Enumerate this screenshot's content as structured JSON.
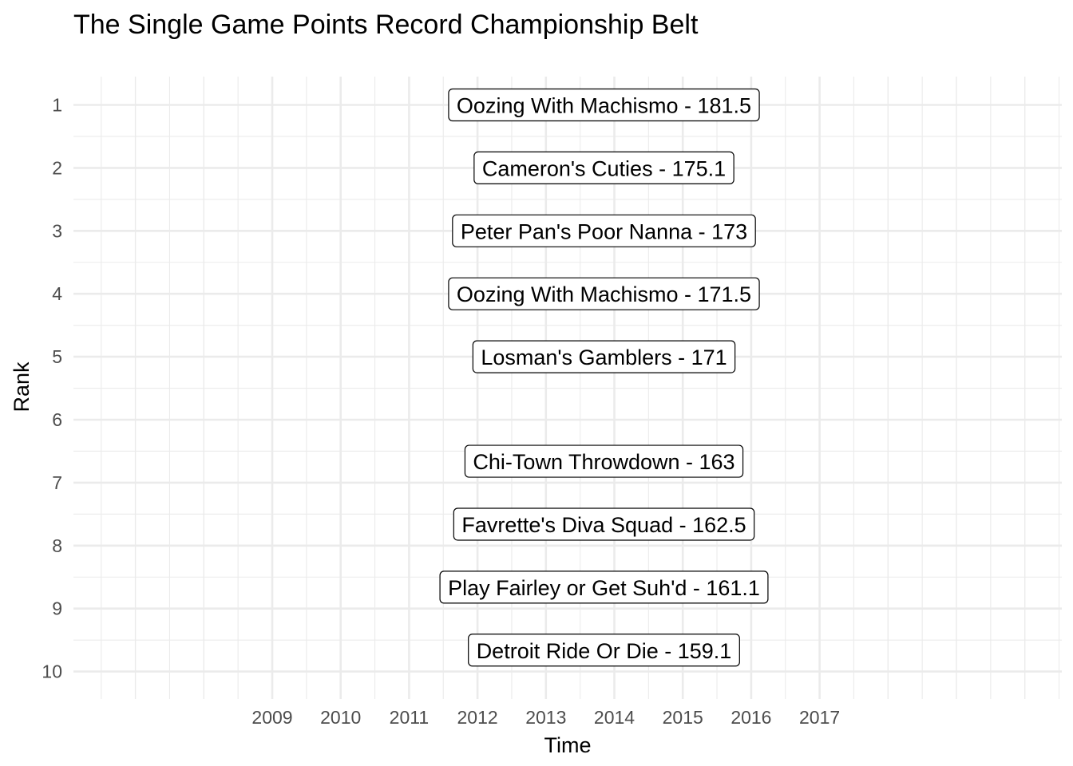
{
  "chart_data": {
    "type": "table",
    "title": "The Single Game Points Record Championship Belt",
    "xlabel": "Time",
    "ylabel": "Rank",
    "x_ticks": [
      "2009",
      "2010",
      "2011",
      "2012",
      "2013",
      "2014",
      "2015",
      "2016",
      "2017"
    ],
    "y_ticks": [
      "1",
      "2",
      "3",
      "4",
      "5",
      "6",
      "7",
      "8",
      "9",
      "10"
    ],
    "xlim": [
      2006.25,
      2020.6
    ],
    "ylim": [
      1,
      10
    ],
    "grid": true,
    "labels": [
      {
        "text": "Oozing With Machismo - 181.5",
        "x": 2014.0,
        "y": 1
      },
      {
        "text": "Cameron's Cuties - 175.1",
        "x": 2014.0,
        "y": 2
      },
      {
        "text": "Peter Pan's Poor Nanna - 173",
        "x": 2014.0,
        "y": 3
      },
      {
        "text": "Oozing With Machismo - 171.5",
        "x": 2014.0,
        "y": 4
      },
      {
        "text": "Losman's Gamblers - 171",
        "x": 2014.0,
        "y": 5
      },
      {
        "text": "Chi-Town Throwdown - 163",
        "x": 2014.0,
        "y": 6.66
      },
      {
        "text": "Favrette's Diva Squad - 162.5",
        "x": 2014.0,
        "y": 7.66
      },
      {
        "text": "Play Fairley or Get Suh'd - 161.1",
        "x": 2014.0,
        "y": 8.66
      },
      {
        "text": "Detroit Ride Or Die - 159.1",
        "x": 2014.0,
        "y": 9.66
      }
    ]
  }
}
